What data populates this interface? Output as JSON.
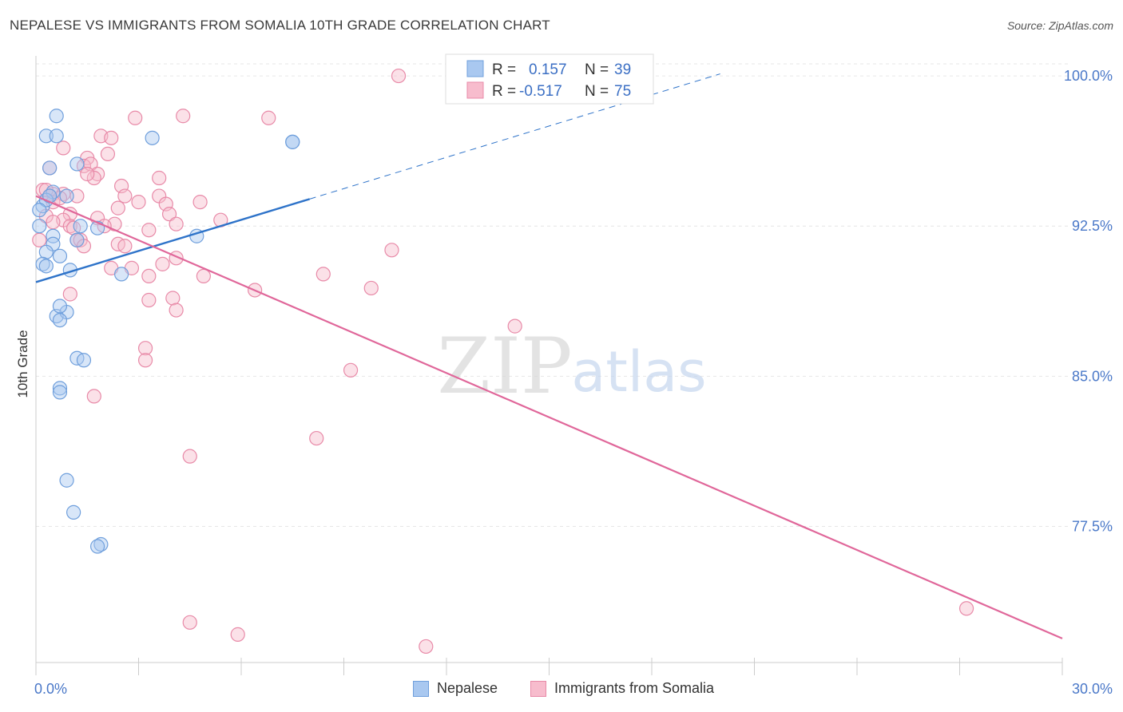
{
  "header": {
    "title": "NEPALESE VS IMMIGRANTS FROM SOMALIA 10TH GRADE CORRELATION CHART",
    "source": "Source: ZipAtlas.com"
  },
  "watermark": {
    "zip": "ZIP",
    "atlas": "atlas"
  },
  "chart_data": {
    "type": "scatter",
    "title": "NEPALESE VS IMMIGRANTS FROM SOMALIA 10TH GRADE CORRELATION CHART",
    "xlabel": "",
    "ylabel": "10th Grade",
    "xlim": [
      0,
      30
    ],
    "ylim": [
      70.7,
      101.0
    ],
    "x_tick_labels": [
      {
        "value": 0,
        "label": "0.0%"
      },
      {
        "value": 30,
        "label": "30.0%"
      }
    ],
    "y_tick_labels": [
      {
        "value": 100.0,
        "label": "100.0%"
      },
      {
        "value": 92.5,
        "label": "92.5%"
      },
      {
        "value": 85.0,
        "label": "85.0%"
      },
      {
        "value": 77.5,
        "label": "77.5%"
      }
    ],
    "x_minor_ticks": [
      0,
      3,
      6,
      9,
      12,
      15,
      18,
      21,
      24,
      27,
      30
    ],
    "grid": true,
    "legend_position": "top-center",
    "colors": {
      "nepalese_fill": "#a9c8f0",
      "nepalese_stroke": "#6f9fdc",
      "nepalese_line": "#2e73c9",
      "somalia_fill": "#f7bccd",
      "somalia_stroke": "#e88aa8",
      "somalia_line": "#e0679a",
      "legend_value": "#3b6fc4",
      "axis_label": "#4a78c8"
    },
    "legend": [
      {
        "swatch": "blue",
        "r_label": "R =",
        "r_value": "0.157",
        "n_label": "N =",
        "n_value": "39"
      },
      {
        "swatch": "pink",
        "r_label": "R =",
        "r_value": "-0.517",
        "n_label": "N =",
        "n_value": "75"
      }
    ],
    "series": [
      {
        "name": "Nepalese",
        "trend": {
          "x0": 0.0,
          "y0": 89.7,
          "x1": 8.0,
          "y1": 93.85,
          "dash_to_x": 20.0,
          "dash_to_y": 100.1
        },
        "points": [
          [
            0.6,
            98.0
          ],
          [
            0.3,
            97.0
          ],
          [
            0.6,
            97.0
          ],
          [
            3.4,
            96.9
          ],
          [
            7.5,
            96.7
          ],
          [
            7.5,
            96.7
          ],
          [
            1.2,
            95.6
          ],
          [
            0.4,
            95.4
          ],
          [
            0.5,
            94.2
          ],
          [
            0.9,
            94.0
          ],
          [
            0.2,
            93.5
          ],
          [
            0.3,
            93.8
          ],
          [
            0.1,
            92.5
          ],
          [
            0.5,
            92.0
          ],
          [
            0.5,
            91.6
          ],
          [
            0.7,
            91.0
          ],
          [
            0.3,
            91.2
          ],
          [
            1.3,
            92.5
          ],
          [
            1.8,
            92.4
          ],
          [
            4.7,
            92.0
          ],
          [
            1.2,
            91.8
          ],
          [
            0.2,
            90.6
          ],
          [
            0.3,
            90.5
          ],
          [
            1.0,
            90.3
          ],
          [
            2.5,
            90.1
          ],
          [
            0.6,
            88.0
          ],
          [
            0.9,
            88.2
          ],
          [
            0.7,
            88.5
          ],
          [
            0.7,
            87.8
          ],
          [
            1.2,
            85.9
          ],
          [
            1.4,
            85.8
          ],
          [
            0.7,
            84.4
          ],
          [
            0.7,
            84.2
          ],
          [
            0.9,
            79.8
          ],
          [
            1.1,
            78.2
          ],
          [
            1.9,
            76.6
          ],
          [
            1.8,
            76.5
          ],
          [
            0.1,
            93.3
          ],
          [
            0.4,
            94.0
          ]
        ]
      },
      {
        "name": "Immigrants from Somalia",
        "trend": {
          "x0": 0.0,
          "y0": 94.0,
          "x1": 30.0,
          "y1": 71.9
        },
        "points": [
          [
            10.6,
            100.0
          ],
          [
            2.9,
            97.9
          ],
          [
            4.3,
            98.0
          ],
          [
            6.8,
            97.9
          ],
          [
            1.9,
            97.0
          ],
          [
            2.2,
            96.9
          ],
          [
            0.8,
            96.4
          ],
          [
            2.1,
            96.1
          ],
          [
            1.5,
            95.9
          ],
          [
            0.4,
            95.4
          ],
          [
            1.4,
            95.5
          ],
          [
            1.6,
            95.6
          ],
          [
            1.8,
            95.1
          ],
          [
            1.7,
            94.9
          ],
          [
            3.6,
            94.9
          ],
          [
            2.5,
            94.5
          ],
          [
            0.2,
            94.3
          ],
          [
            0.5,
            94.1
          ],
          [
            0.8,
            94.1
          ],
          [
            1.2,
            94.0
          ],
          [
            2.6,
            94.0
          ],
          [
            3.6,
            94.0
          ],
          [
            0.4,
            94.0
          ],
          [
            0.5,
            93.7
          ],
          [
            3.0,
            93.7
          ],
          [
            3.8,
            93.6
          ],
          [
            4.8,
            93.7
          ],
          [
            2.4,
            93.4
          ],
          [
            1.0,
            93.1
          ],
          [
            3.9,
            93.1
          ],
          [
            0.3,
            93.0
          ],
          [
            1.8,
            92.9
          ],
          [
            0.8,
            92.8
          ],
          [
            5.4,
            92.8
          ],
          [
            1.0,
            92.5
          ],
          [
            2.3,
            92.6
          ],
          [
            4.1,
            92.6
          ],
          [
            2.0,
            92.5
          ],
          [
            1.1,
            92.4
          ],
          [
            3.3,
            92.3
          ],
          [
            0.1,
            91.8
          ],
          [
            1.2,
            91.8
          ],
          [
            2.4,
            91.6
          ],
          [
            1.3,
            91.8
          ],
          [
            2.6,
            91.5
          ],
          [
            1.4,
            91.5
          ],
          [
            10.4,
            91.3
          ],
          [
            4.1,
            90.9
          ],
          [
            3.7,
            90.6
          ],
          [
            2.2,
            90.4
          ],
          [
            2.8,
            90.4
          ],
          [
            4.9,
            90.0
          ],
          [
            8.4,
            90.1
          ],
          [
            3.3,
            90.0
          ],
          [
            6.4,
            89.3
          ],
          [
            9.8,
            89.4
          ],
          [
            1.0,
            89.1
          ],
          [
            4.0,
            88.9
          ],
          [
            3.3,
            88.8
          ],
          [
            4.1,
            88.3
          ],
          [
            14.0,
            87.5
          ],
          [
            3.2,
            86.4
          ],
          [
            3.2,
            85.8
          ],
          [
            9.2,
            85.3
          ],
          [
            1.7,
            84.0
          ],
          [
            8.2,
            81.9
          ],
          [
            4.5,
            81.0
          ],
          [
            4.5,
            72.7
          ],
          [
            5.9,
            72.1
          ],
          [
            11.4,
            71.5
          ],
          [
            27.2,
            73.4
          ],
          [
            0.3,
            94.3
          ],
          [
            0.7,
            93.9
          ],
          [
            0.5,
            92.7
          ],
          [
            1.5,
            95.1
          ]
        ]
      }
    ]
  },
  "legend_bottom": [
    {
      "label": "Nepalese"
    },
    {
      "label": "Immigrants from Somalia"
    }
  ]
}
